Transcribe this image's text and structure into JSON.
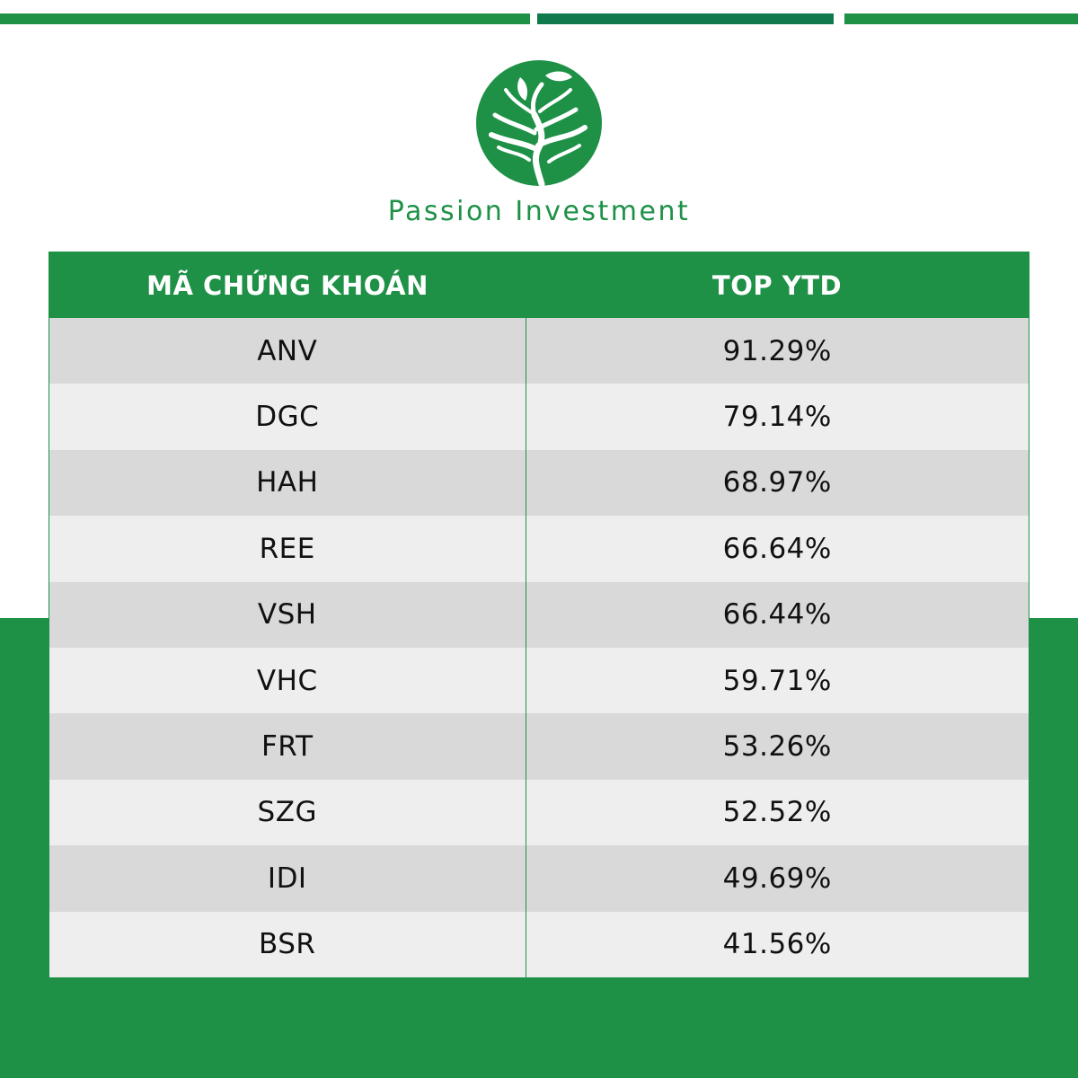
{
  "brand": {
    "name": "Passion Investment",
    "color": "#1e9147"
  },
  "table": {
    "headers": {
      "code": "MÃ CHỨNG KHOÁN",
      "value": "TOP YTD"
    },
    "rows": [
      {
        "code": "ANV",
        "value": "91.29%"
      },
      {
        "code": "DGC",
        "value": "79.14%"
      },
      {
        "code": "HAH",
        "value": "68.97%"
      },
      {
        "code": "REE",
        "value": "66.64%"
      },
      {
        "code": "VSH",
        "value": "66.44%"
      },
      {
        "code": "VHC",
        "value": "59.71%"
      },
      {
        "code": "FRT",
        "value": "53.26%"
      },
      {
        "code": "SZG",
        "value": "52.52%"
      },
      {
        "code": "IDI",
        "value": "49.69%"
      },
      {
        "code": "BSR",
        "value": "41.56%"
      }
    ]
  },
  "icons": {
    "logo": "tree-logo-icon"
  }
}
